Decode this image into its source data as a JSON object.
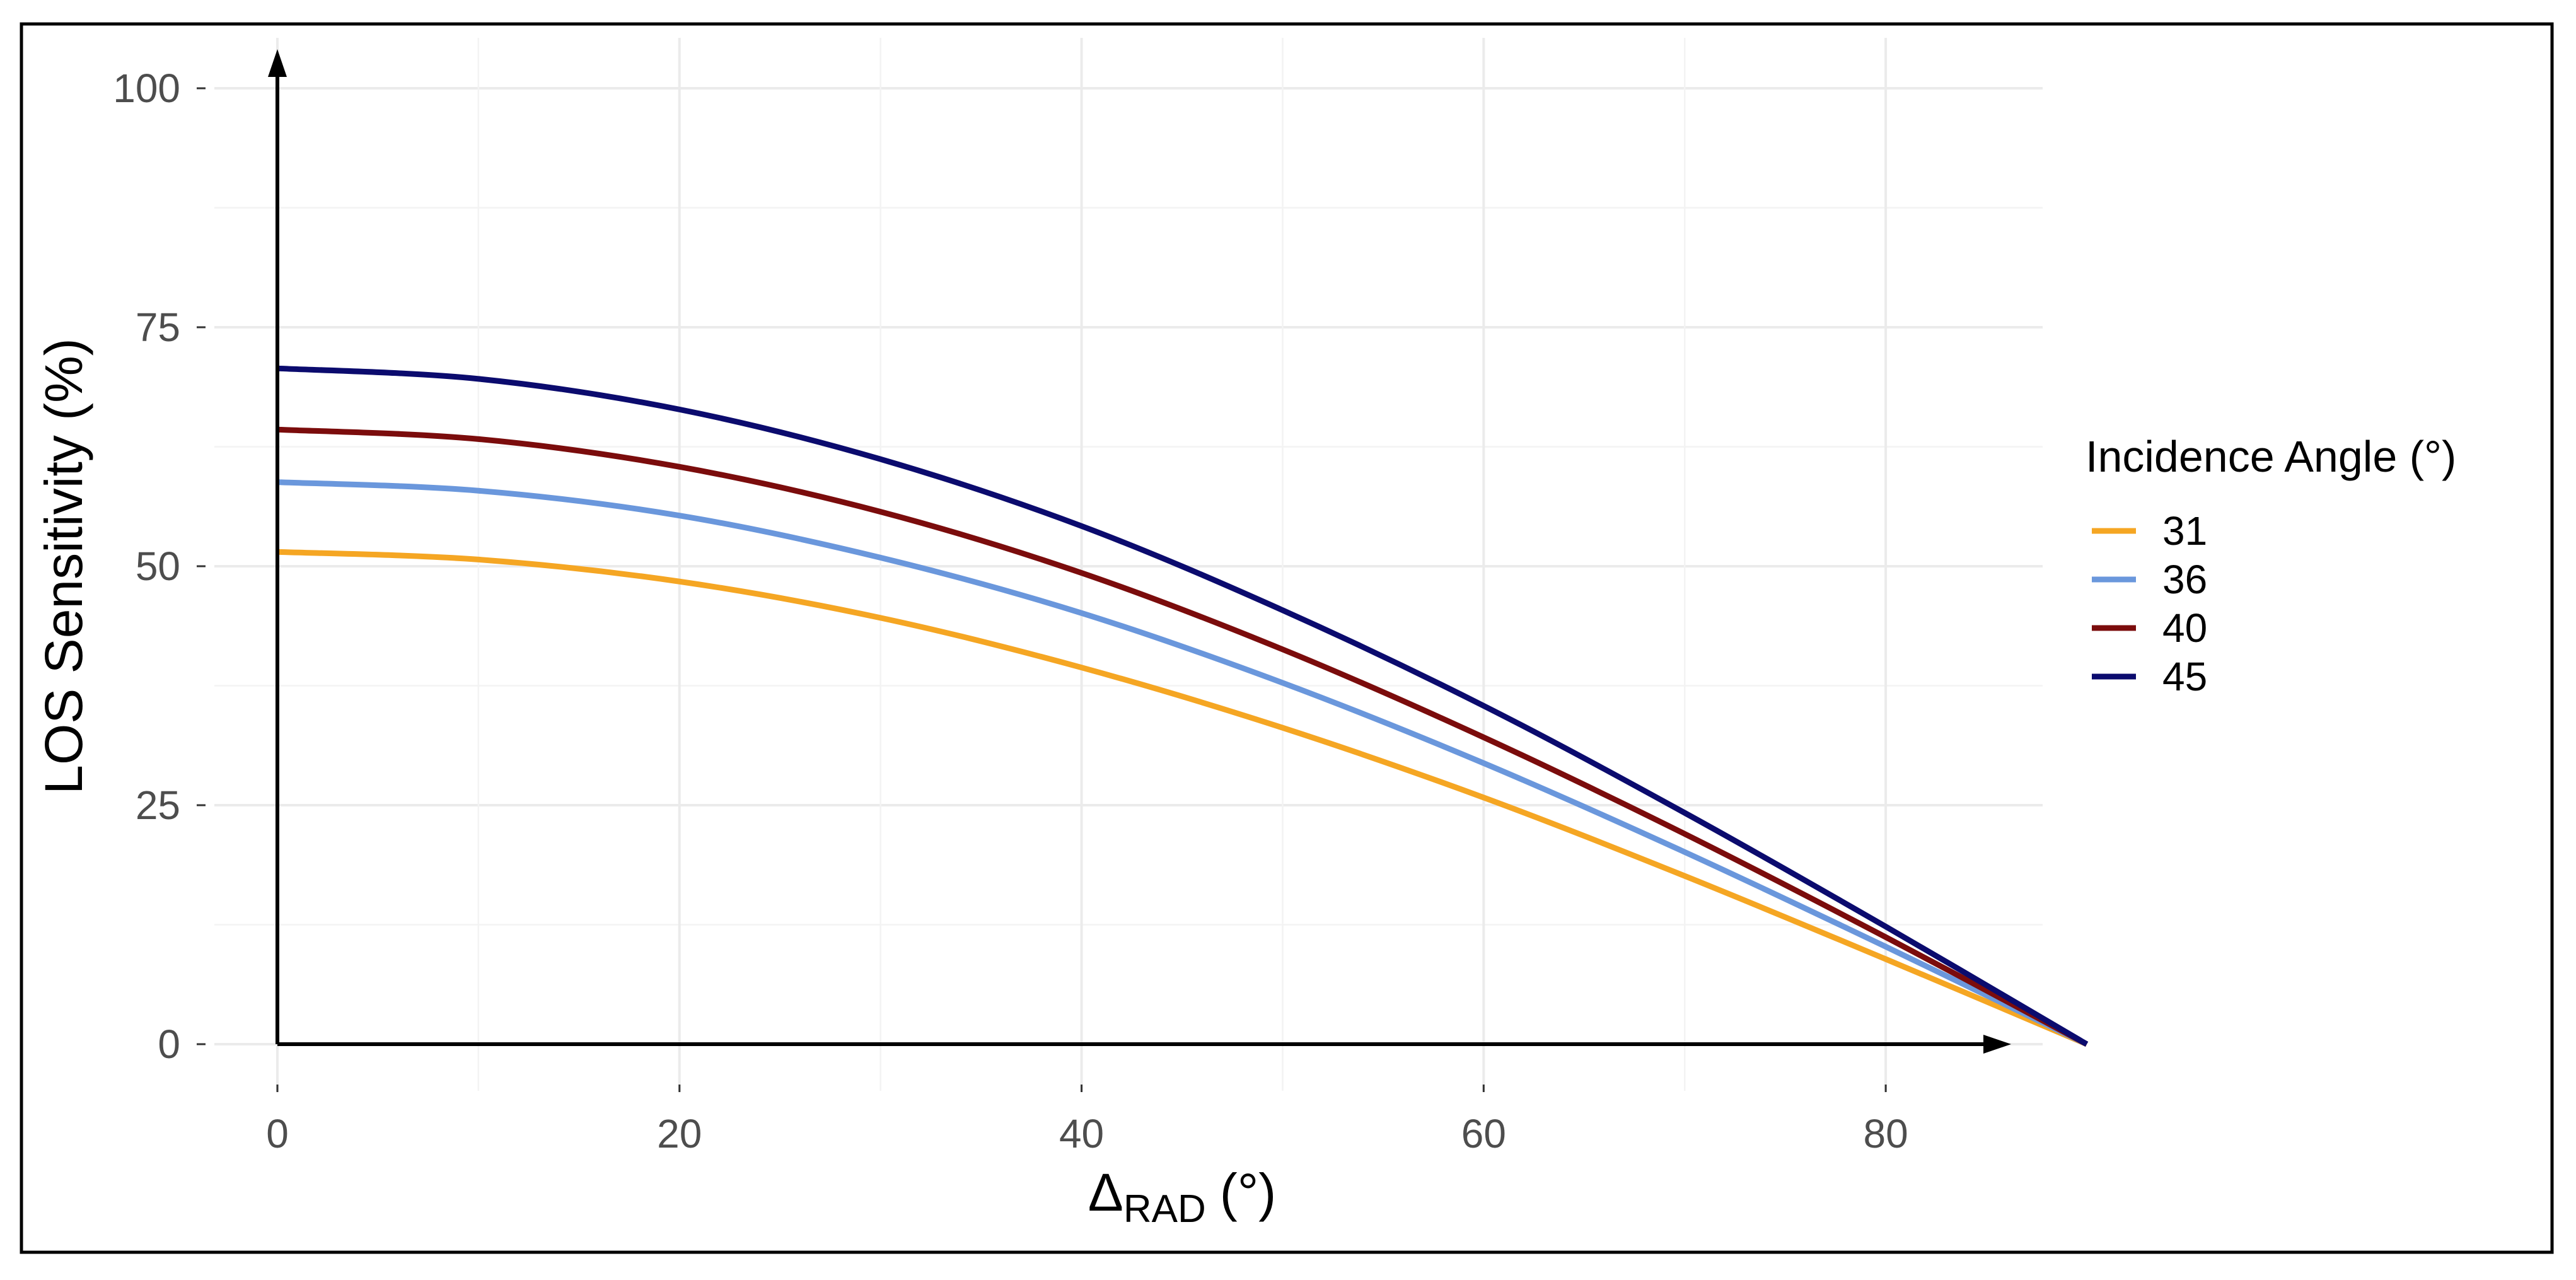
{
  "chart_data": {
    "type": "line",
    "title": "",
    "xlabel": "Δ",
    "xlabel_subscript": "RAD",
    "xlabel_unit": "(°)",
    "ylabel": "LOS Sensitivity (%)",
    "xlim": [
      0,
      90
    ],
    "ylim": [
      0,
      100
    ],
    "x_ticks": [
      0,
      20,
      40,
      60,
      80
    ],
    "x_tick_labels": [
      "0",
      "20",
      "40",
      "60",
      "80"
    ],
    "y_ticks": [
      0,
      25,
      50,
      75,
      100
    ],
    "y_tick_labels": [
      "0",
      "25",
      "50",
      "75",
      "100"
    ],
    "grid": true,
    "legend": {
      "title": "Incidence Angle (°)",
      "position": "right"
    },
    "x": [
      0,
      10,
      20,
      30,
      40,
      50,
      60,
      70,
      80,
      90
    ],
    "series": [
      {
        "name": "31",
        "color": "#f5a623",
        "values": [
          51.5,
          50.7,
          48.4,
          44.6,
          39.4,
          33.1,
          25.8,
          17.6,
          8.9,
          0.0
        ]
      },
      {
        "name": "36",
        "color": "#6a97dc",
        "values": [
          58.8,
          57.9,
          55.3,
          50.9,
          45.1,
          37.8,
          29.4,
          20.1,
          10.2,
          0.0
        ]
      },
      {
        "name": "40",
        "color": "#7b0c0c",
        "values": [
          64.3,
          63.3,
          60.4,
          55.7,
          49.3,
          41.3,
          32.1,
          22.0,
          11.2,
          0.0
        ]
      },
      {
        "name": "45",
        "color": "#0b0b6e",
        "values": [
          70.7,
          69.6,
          66.4,
          61.2,
          54.2,
          45.4,
          35.4,
          24.2,
          12.3,
          0.0
        ]
      }
    ]
  }
}
